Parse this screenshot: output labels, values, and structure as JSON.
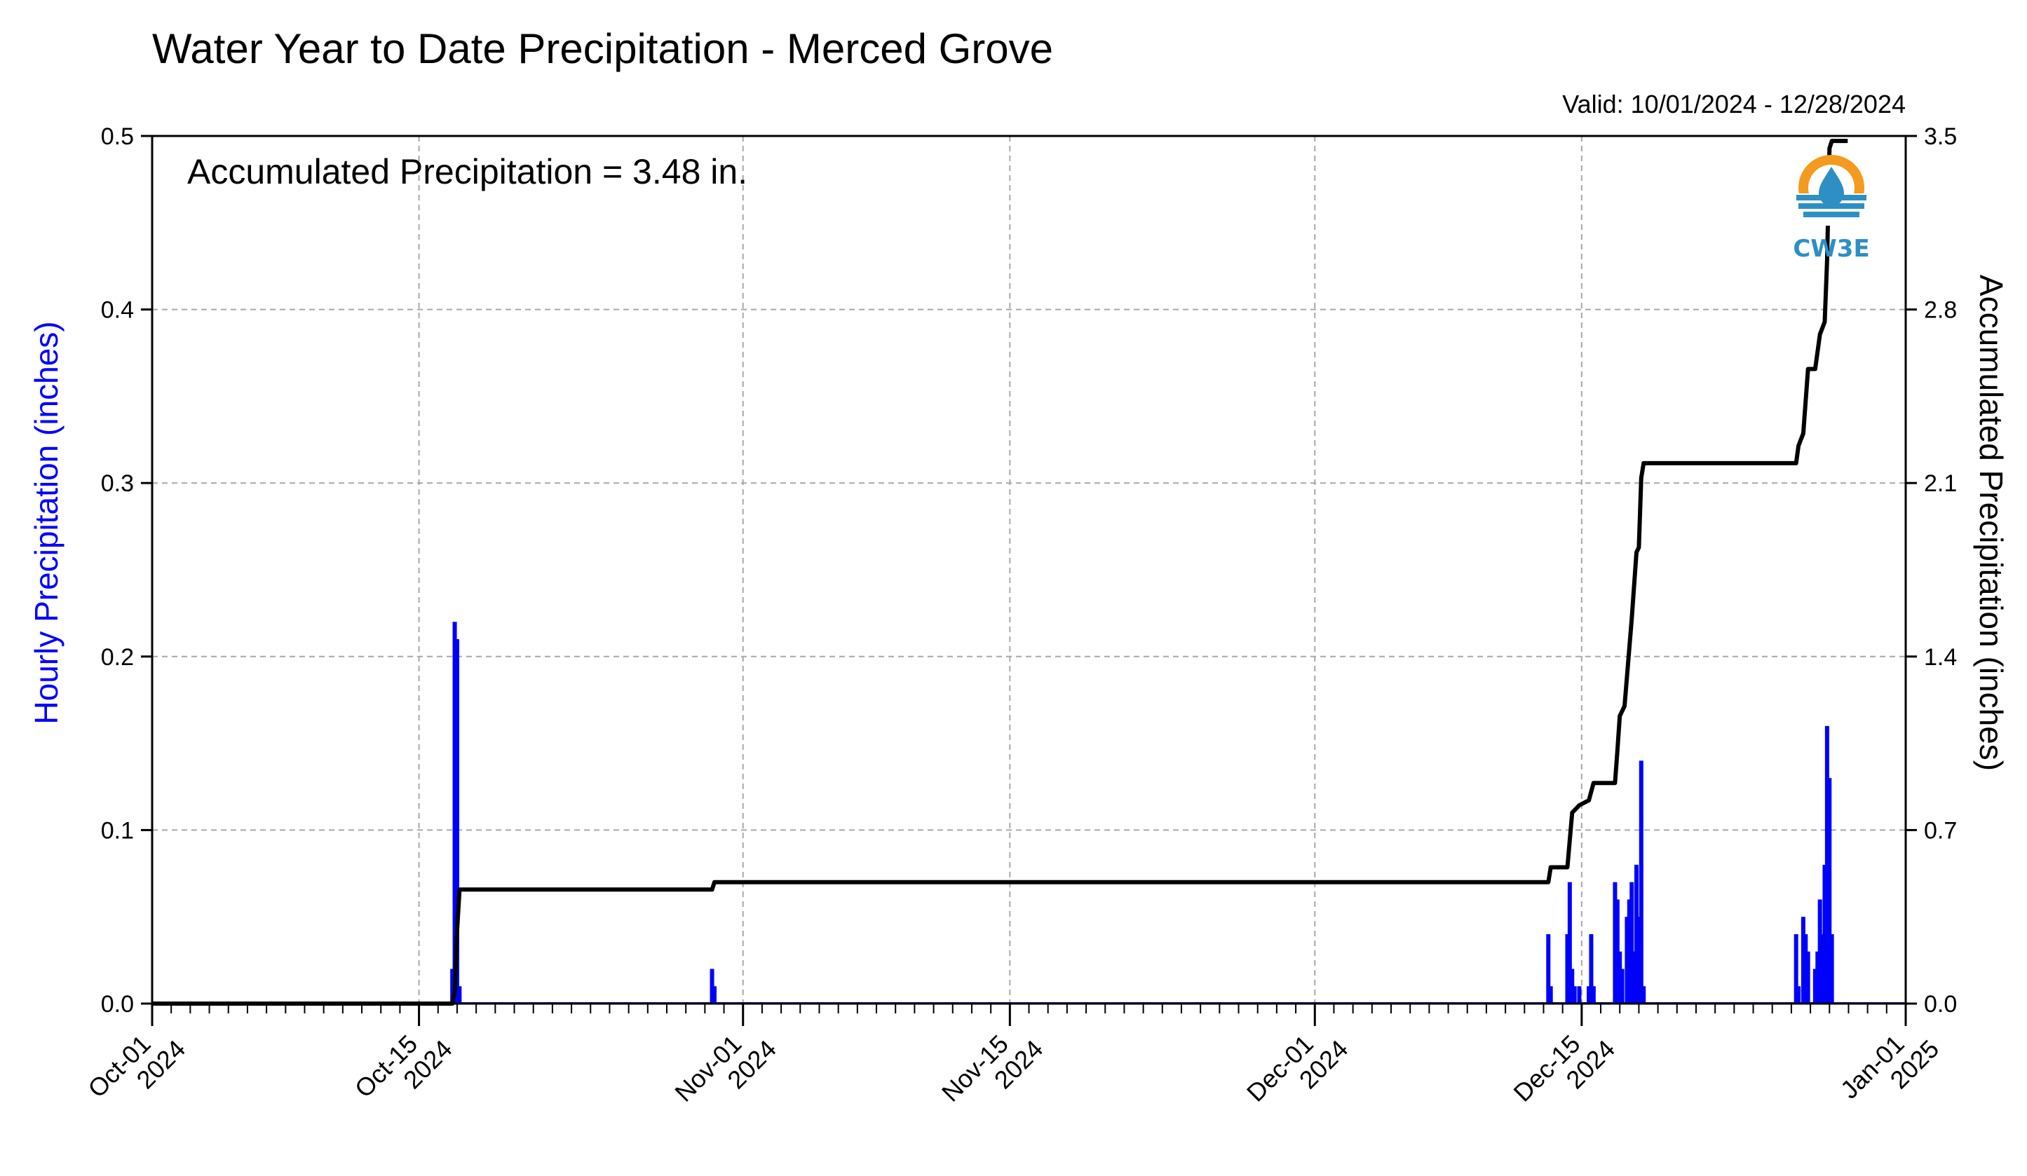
{
  "chart_data": {
    "type": "bar+line",
    "title": "Water Year to Date Precipitation - Merced Grove",
    "subtitle": "Valid: 10/01/2024 - 12/28/2024",
    "annotation": "Accumulated Precipitation = 3.48 in.",
    "ylabel_left": "Hourly Precipitation (inches)",
    "ylabel_right": "Accumulated Precipitation (inches)",
    "xlim": [
      "2024-10-01",
      "2025-01-01"
    ],
    "ylim_left": [
      0,
      0.5
    ],
    "ylim_right": [
      0,
      3.5
    ],
    "yticks_left": [
      "0.0",
      "0.1",
      "0.2",
      "0.3",
      "0.4",
      "0.5"
    ],
    "yticks_right": [
      "0.0",
      "0.7",
      "1.4",
      "2.1",
      "2.8",
      "3.5"
    ],
    "xticks": [
      {
        "date": "2024-10-01",
        "line1": "Oct-01",
        "line2": "2024"
      },
      {
        "date": "2024-10-15",
        "line1": "Oct-15",
        "line2": "2024"
      },
      {
        "date": "2024-11-01",
        "line1": "Nov-01",
        "line2": "2024"
      },
      {
        "date": "2024-11-15",
        "line1": "Nov-15",
        "line2": "2024"
      },
      {
        "date": "2024-12-01",
        "line1": "Dec-01",
        "line2": "2024"
      },
      {
        "date": "2024-12-15",
        "line1": "Dec-15",
        "line2": "2024"
      },
      {
        "date": "2025-01-01",
        "line1": "Jan-01",
        "line2": "2025"
      }
    ],
    "grid": true,
    "colors": {
      "hourly": "#0000ff",
      "accumulated": "#000000",
      "left_label": "#0000ff",
      "grid": "#a8a8a8"
    },
    "hourly_series": {
      "name": "Hourly Precipitation",
      "points": [
        {
          "t": "2024-10-16 18:00",
          "v": 0.02
        },
        {
          "t": "2024-10-16 21:00",
          "v": 0.22
        },
        {
          "t": "2024-10-17 00:00",
          "v": 0.21
        },
        {
          "t": "2024-10-17 03:00",
          "v": 0.01
        },
        {
          "t": "2024-10-30 09:00",
          "v": 0.02
        },
        {
          "t": "2024-10-30 12:00",
          "v": 0.01
        },
        {
          "t": "2024-12-13 06:00",
          "v": 0.04
        },
        {
          "t": "2024-12-13 09:00",
          "v": 0.01
        },
        {
          "t": "2024-12-14 06:00",
          "v": 0.04
        },
        {
          "t": "2024-12-14 09:00",
          "v": 0.07
        },
        {
          "t": "2024-12-14 12:00",
          "v": 0.02
        },
        {
          "t": "2024-12-14 15:00",
          "v": 0.01
        },
        {
          "t": "2024-12-14 21:00",
          "v": 0.01
        },
        {
          "t": "2024-12-15 09:00",
          "v": 0.01
        },
        {
          "t": "2024-12-15 12:00",
          "v": 0.04
        },
        {
          "t": "2024-12-15 15:00",
          "v": 0.01
        },
        {
          "t": "2024-12-16 18:00",
          "v": 0.07
        },
        {
          "t": "2024-12-16 21:00",
          "v": 0.06
        },
        {
          "t": "2024-12-17 00:00",
          "v": 0.03
        },
        {
          "t": "2024-12-17 03:00",
          "v": 0.02
        },
        {
          "t": "2024-12-17 09:00",
          "v": 0.05
        },
        {
          "t": "2024-12-17 12:00",
          "v": 0.06
        },
        {
          "t": "2024-12-17 15:00",
          "v": 0.07
        },
        {
          "t": "2024-12-17 18:00",
          "v": 0.03
        },
        {
          "t": "2024-12-17 21:00",
          "v": 0.08
        },
        {
          "t": "2024-12-18 00:00",
          "v": 0.05
        },
        {
          "t": "2024-12-18 03:00",
          "v": 0.14
        },
        {
          "t": "2024-12-18 06:00",
          "v": 0.01
        },
        {
          "t": "2024-12-26 06:00",
          "v": 0.04
        },
        {
          "t": "2024-12-26 09:00",
          "v": 0.01
        },
        {
          "t": "2024-12-26 15:00",
          "v": 0.05
        },
        {
          "t": "2024-12-26 18:00",
          "v": 0.04
        },
        {
          "t": "2024-12-26 21:00",
          "v": 0.03
        },
        {
          "t": "2024-12-27 06:00",
          "v": 0.02
        },
        {
          "t": "2024-12-27 09:00",
          "v": 0.03
        },
        {
          "t": "2024-12-27 12:00",
          "v": 0.06
        },
        {
          "t": "2024-12-27 15:00",
          "v": 0.04
        },
        {
          "t": "2024-12-27 18:00",
          "v": 0.08
        },
        {
          "t": "2024-12-27 21:00",
          "v": 0.16
        },
        {
          "t": "2024-12-28 00:00",
          "v": 0.13
        },
        {
          "t": "2024-12-28 03:00",
          "v": 0.04
        }
      ]
    },
    "accumulated_series": {
      "name": "Accumulated Precipitation",
      "points": [
        {
          "t": "2024-10-01 00:00",
          "v": 0.0
        },
        {
          "t": "2024-10-16 18:00",
          "v": 0.0
        },
        {
          "t": "2024-10-16 21:00",
          "v": 0.05
        },
        {
          "t": "2024-10-17 00:00",
          "v": 0.3
        },
        {
          "t": "2024-10-17 03:00",
          "v": 0.46
        },
        {
          "t": "2024-10-30 09:00",
          "v": 0.46
        },
        {
          "t": "2024-10-30 12:00",
          "v": 0.49
        },
        {
          "t": "2024-12-13 06:00",
          "v": 0.49
        },
        {
          "t": "2024-12-13 09:00",
          "v": 0.55
        },
        {
          "t": "2024-12-14 06:00",
          "v": 0.55
        },
        {
          "t": "2024-12-14 12:00",
          "v": 0.77
        },
        {
          "t": "2024-12-14 21:00",
          "v": 0.8
        },
        {
          "t": "2024-12-15 09:00",
          "v": 0.82
        },
        {
          "t": "2024-12-15 15:00",
          "v": 0.89
        },
        {
          "t": "2024-12-16 18:00",
          "v": 0.89
        },
        {
          "t": "2024-12-16 21:00",
          "v": 1.02
        },
        {
          "t": "2024-12-17 00:00",
          "v": 1.16
        },
        {
          "t": "2024-12-17 06:00",
          "v": 1.2
        },
        {
          "t": "2024-12-17 15:00",
          "v": 1.55
        },
        {
          "t": "2024-12-17 21:00",
          "v": 1.82
        },
        {
          "t": "2024-12-18 00:00",
          "v": 1.84
        },
        {
          "t": "2024-12-18 03:00",
          "v": 2.12
        },
        {
          "t": "2024-12-18 06:00",
          "v": 2.18
        },
        {
          "t": "2024-12-26 06:00",
          "v": 2.18
        },
        {
          "t": "2024-12-26 09:00",
          "v": 2.25
        },
        {
          "t": "2024-12-26 15:00",
          "v": 2.3
        },
        {
          "t": "2024-12-26 21:00",
          "v": 2.56
        },
        {
          "t": "2024-12-27 06:00",
          "v": 2.56
        },
        {
          "t": "2024-12-27 12:00",
          "v": 2.7
        },
        {
          "t": "2024-12-27 18:00",
          "v": 2.75
        },
        {
          "t": "2024-12-27 21:00",
          "v": 3.0
        },
        {
          "t": "2024-12-28 00:00",
          "v": 3.45
        },
        {
          "t": "2024-12-28 03:00",
          "v": 3.48
        },
        {
          "t": "2024-12-28 23:00",
          "v": 3.48
        }
      ]
    },
    "logo_text": "CW3E"
  }
}
